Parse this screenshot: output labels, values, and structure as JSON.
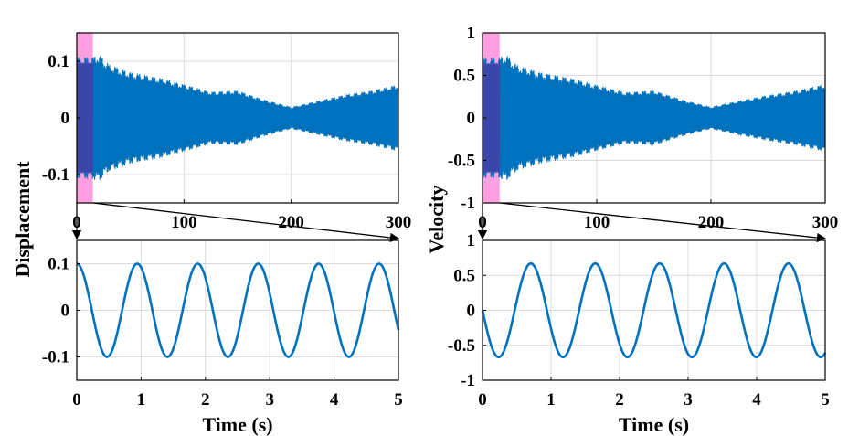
{
  "colors": {
    "signal": "#0072BD",
    "highlight_fill": "#ff9ee0",
    "highlight_overlap": "#4a4db4",
    "grid": "#dcdcdc"
  },
  "chart_data": [
    {
      "type": "line",
      "panel": "displacement-full",
      "xlabel": "",
      "ylabel": "Displacement",
      "xlim": [
        0,
        300
      ],
      "ylim": [
        -0.15,
        0.15
      ],
      "xticks": [
        "0",
        "100",
        "200",
        "300"
      ],
      "yticks": [
        "-0.1",
        "0",
        "0.1"
      ],
      "grid": true,
      "highlight_region": [
        0,
        15
      ],
      "envelope": {
        "t": [
          0,
          15,
          20,
          30,
          50,
          80,
          100,
          125,
          150,
          175,
          200,
          225,
          250,
          275,
          300
        ],
        "amplitude": [
          0.1,
          0.1,
          0.105,
          0.088,
          0.075,
          0.065,
          0.055,
          0.043,
          0.045,
          0.03,
          0.018,
          0.028,
          0.038,
          0.045,
          0.055
        ]
      },
      "series": [
        {
          "values": "oscillation within envelope"
        }
      ]
    },
    {
      "type": "line",
      "panel": "velocity-full",
      "xlabel": "",
      "ylabel": "Velocity",
      "xlim": [
        0,
        300
      ],
      "ylim": [
        -1,
        1
      ],
      "xticks": [
        "0",
        "100",
        "200",
        "300"
      ],
      "yticks": [
        "-1",
        "-0.5",
        "0",
        "0.5",
        "1"
      ],
      "grid": true,
      "highlight_region": [
        0,
        15
      ],
      "envelope": {
        "t": [
          0,
          15,
          20,
          30,
          50,
          80,
          100,
          125,
          150,
          175,
          200,
          225,
          250,
          275,
          300
        ],
        "amplitude": [
          0.66,
          0.66,
          0.7,
          0.58,
          0.5,
          0.43,
          0.36,
          0.28,
          0.3,
          0.2,
          0.12,
          0.19,
          0.25,
          0.3,
          0.37
        ]
      },
      "series": [
        {
          "values": "oscillation within envelope"
        }
      ]
    },
    {
      "type": "line",
      "panel": "displacement-zoom",
      "xlabel": "Time (s)",
      "ylabel": "",
      "xlim": [
        0,
        5
      ],
      "ylim": [
        -0.15,
        0.15
      ],
      "xticks": [
        "0",
        "1",
        "2",
        "3",
        "4",
        "5"
      ],
      "yticks": [
        "-0.1",
        "0",
        "0.1"
      ],
      "grid": true,
      "series": [
        {
          "amplitude": 0.1,
          "period": 0.94,
          "form": "cosine"
        }
      ]
    },
    {
      "type": "line",
      "panel": "velocity-zoom",
      "xlabel": "Time (s)",
      "ylabel": "",
      "xlim": [
        0,
        5
      ],
      "ylim": [
        -1,
        1
      ],
      "xticks": [
        "0",
        "1",
        "2",
        "3",
        "4",
        "5"
      ],
      "yticks": [
        "-1",
        "-0.5",
        "0",
        "0.5",
        "1"
      ],
      "grid": true,
      "series": [
        {
          "amplitude": 0.67,
          "period": 0.94,
          "form": "negative sine"
        }
      ]
    }
  ]
}
